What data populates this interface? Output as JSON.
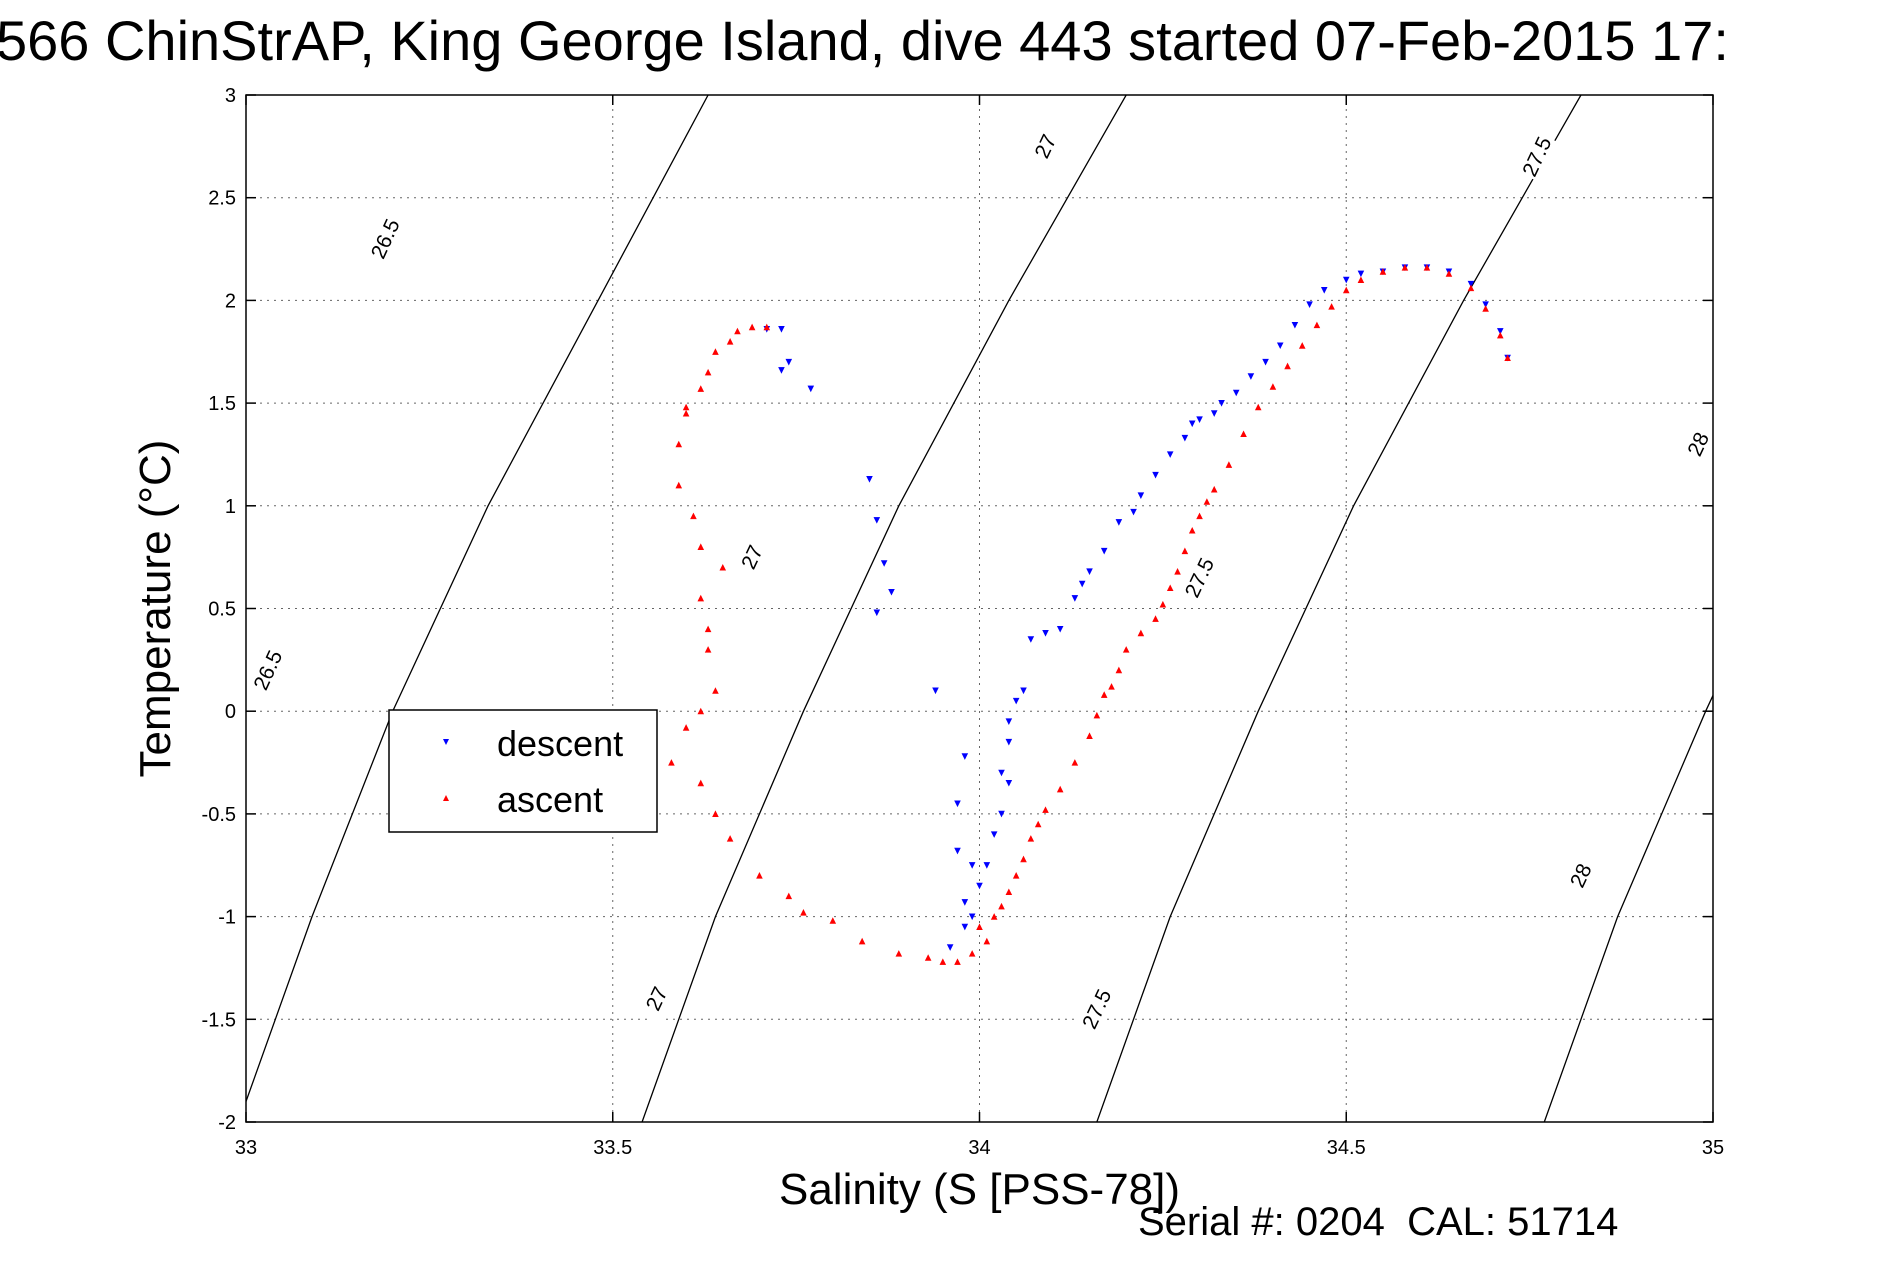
{
  "title": "566 ChinStrAP, King George Island, dive 443 started 07-Feb-2015 17:",
  "footer": {
    "serial_text": "Serial #: 0204  CAL: 51714"
  },
  "colors": {
    "descent": "#0000ff",
    "ascent": "#ff0000",
    "axis": "#000000",
    "grid": "#000000"
  },
  "chart_data": {
    "type": "scatter",
    "xlabel": "Salinity (S [PSS-78])",
    "ylabel": "Temperature (°C)",
    "xlim": [
      33,
      35
    ],
    "ylim": [
      -2,
      3
    ],
    "xticks": [
      33,
      33.5,
      34,
      34.5,
      35
    ],
    "xtick_labels": [
      "33",
      "33.5",
      "34",
      "34.5",
      "35"
    ],
    "yticks": [
      -2,
      -1.5,
      -1,
      -0.5,
      0,
      0.5,
      1,
      1.5,
      2,
      2.5,
      3
    ],
    "ytick_labels": [
      "-2",
      "-1.5",
      "-1",
      "-0.5",
      "0",
      "0.5",
      "1",
      "1.5",
      "2",
      "2.5",
      "3"
    ],
    "grid": true,
    "legend_position": "center-left",
    "density_contours": [
      {
        "label": "26.5",
        "points": [
          [
            32.99,
            -2.0
          ],
          [
            33.09,
            -1.0
          ],
          [
            33.2,
            0.0
          ],
          [
            33.33,
            1.0
          ],
          [
            33.48,
            2.0
          ],
          [
            33.63,
            3.0
          ]
        ],
        "label_positions": [
          [
            33.03,
            0.2
          ],
          [
            33.19,
            2.3
          ]
        ]
      },
      {
        "label": "27",
        "points": [
          [
            33.54,
            -2.0
          ],
          [
            33.64,
            -1.0
          ],
          [
            33.76,
            0.0
          ],
          [
            33.89,
            1.0
          ],
          [
            34.04,
            2.0
          ],
          [
            34.2,
            3.0
          ]
        ],
        "label_positions": [
          [
            33.56,
            -1.4
          ],
          [
            33.69,
            0.75
          ],
          [
            34.09,
            2.75
          ]
        ]
      },
      {
        "label": "27.5",
        "points": [
          [
            34.16,
            -2.0
          ],
          [
            34.26,
            -1.0
          ],
          [
            34.38,
            0.0
          ],
          [
            34.51,
            1.0
          ],
          [
            34.66,
            2.0
          ],
          [
            34.82,
            3.0
          ]
        ],
        "label_positions": [
          [
            34.16,
            -1.45
          ],
          [
            34.3,
            0.65
          ],
          [
            34.76,
            2.7
          ]
        ]
      },
      {
        "label": "28",
        "points": [
          [
            34.77,
            -2.0
          ],
          [
            34.87,
            -1.0
          ],
          [
            34.99,
            0.0
          ],
          [
            35.12,
            1.0
          ],
          [
            35.27,
            2.0
          ],
          [
            35.42,
            3.0
          ]
        ],
        "label_positions": [
          [
            34.82,
            -0.8
          ],
          [
            34.98,
            1.3
          ]
        ]
      }
    ],
    "series": [
      {
        "name": "descent",
        "marker": "down-triangle",
        "color": "#0000ff",
        "x": [
          33.71,
          33.74,
          33.73,
          33.73,
          33.77,
          33.85,
          33.86,
          33.87,
          33.86,
          33.88,
          33.94,
          33.98,
          33.97,
          33.97,
          33.99,
          33.98,
          33.98,
          33.96,
          33.99,
          34.0,
          34.01,
          34.02,
          34.03,
          34.04,
          34.04,
          34.03,
          34.04,
          34.05,
          34.06,
          34.07,
          34.09,
          34.11,
          34.13,
          34.14,
          34.15,
          34.17,
          34.19,
          34.21,
          34.22,
          34.24,
          34.26,
          34.28,
          34.29,
          34.3,
          34.32,
          34.33,
          34.35,
          34.37,
          34.39,
          34.41,
          34.43,
          34.45,
          34.47,
          34.5,
          34.52,
          34.55,
          34.58,
          34.61,
          34.64,
          34.67,
          34.69,
          34.71,
          34.72
        ],
        "y": [
          1.86,
          1.7,
          1.66,
          1.86,
          1.57,
          1.13,
          0.93,
          0.72,
          0.48,
          0.58,
          0.1,
          -0.22,
          -0.45,
          -0.68,
          -0.75,
          -0.93,
          -1.05,
          -1.15,
          -1.0,
          -0.85,
          -0.75,
          -0.6,
          -0.5,
          -0.35,
          -0.15,
          -0.3,
          -0.05,
          0.05,
          0.1,
          0.35,
          0.38,
          0.4,
          0.55,
          0.62,
          0.68,
          0.78,
          0.92,
          0.97,
          1.05,
          1.15,
          1.25,
          1.33,
          1.4,
          1.42,
          1.45,
          1.5,
          1.55,
          1.63,
          1.7,
          1.78,
          1.88,
          1.98,
          2.05,
          2.1,
          2.13,
          2.14,
          2.16,
          2.16,
          2.14,
          2.08,
          1.98,
          1.85,
          1.72
        ]
      },
      {
        "name": "ascent",
        "marker": "up-triangle",
        "color": "#ff0000",
        "x": [
          33.71,
          33.69,
          33.67,
          33.66,
          33.64,
          33.63,
          33.62,
          33.6,
          33.6,
          33.59,
          33.59,
          33.61,
          33.62,
          33.65,
          33.62,
          33.63,
          33.63,
          33.64,
          33.62,
          33.6,
          33.58,
          33.62,
          33.64,
          33.66,
          33.7,
          33.74,
          33.76,
          33.8,
          33.84,
          33.89,
          33.93,
          33.95,
          33.97,
          33.99,
          34.01,
          34.0,
          34.02,
          34.03,
          34.04,
          34.05,
          34.06,
          34.07,
          34.08,
          34.09,
          34.11,
          34.13,
          34.15,
          34.16,
          34.17,
          34.18,
          34.19,
          34.2,
          34.22,
          34.24,
          34.25,
          34.26,
          34.27,
          34.28,
          34.29,
          34.3,
          34.31,
          34.32,
          34.34,
          34.36,
          34.38,
          34.4,
          34.42,
          34.44,
          34.46,
          34.48,
          34.5,
          34.52,
          34.55,
          34.58,
          34.61,
          34.64,
          34.67,
          34.69,
          34.71,
          34.72
        ],
        "y": [
          1.87,
          1.87,
          1.85,
          1.8,
          1.75,
          1.65,
          1.57,
          1.48,
          1.45,
          1.3,
          1.1,
          0.95,
          0.8,
          0.7,
          0.55,
          0.4,
          0.3,
          0.1,
          0.0,
          -0.08,
          -0.25,
          -0.35,
          -0.5,
          -0.62,
          -0.8,
          -0.9,
          -0.98,
          -1.02,
          -1.12,
          -1.18,
          -1.2,
          -1.22,
          -1.22,
          -1.18,
          -1.12,
          -1.05,
          -1.0,
          -0.95,
          -0.88,
          -0.8,
          -0.72,
          -0.62,
          -0.55,
          -0.48,
          -0.38,
          -0.25,
          -0.12,
          -0.02,
          0.08,
          0.12,
          0.2,
          0.3,
          0.38,
          0.45,
          0.52,
          0.6,
          0.68,
          0.78,
          0.88,
          0.95,
          1.02,
          1.08,
          1.2,
          1.35,
          1.48,
          1.58,
          1.68,
          1.78,
          1.88,
          1.97,
          2.05,
          2.1,
          2.14,
          2.16,
          2.16,
          2.13,
          2.06,
          1.96,
          1.83,
          1.72
        ]
      }
    ]
  }
}
